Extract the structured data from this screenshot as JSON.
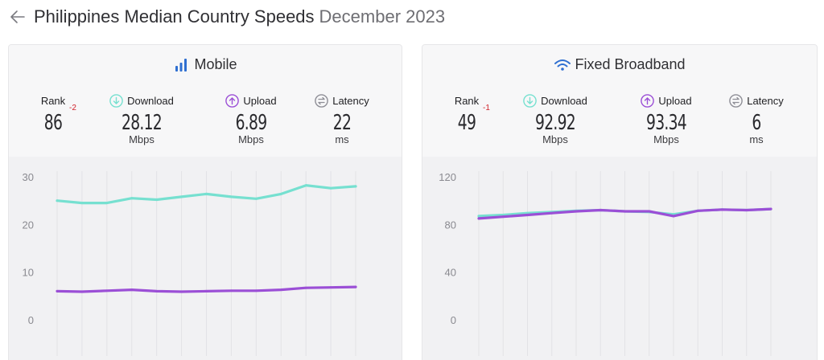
{
  "header": {
    "title": "Philippines Median Country Speeds",
    "period": "December 2023"
  },
  "colors": {
    "download": "#76e0d0",
    "upload": "#9b4fd6",
    "latency": "#8e8e96",
    "rank_change": "#d0202a",
    "icon_blue": "#2f6fd1"
  },
  "mobile": {
    "title": "Mobile",
    "icon": "signal-bars-icon",
    "rank_label": "Rank",
    "rank": "86",
    "rank_change": "-2",
    "download_label": "Download",
    "download": "28.12",
    "download_unit": "Mbps",
    "upload_label": "Upload",
    "upload": "6.89",
    "upload_unit": "Mbps",
    "latency_label": "Latency",
    "latency": "22",
    "latency_unit": "ms"
  },
  "fixed": {
    "title": "Fixed Broadband",
    "icon": "wifi-icon",
    "rank_label": "Rank",
    "rank": "49",
    "rank_change": "-1",
    "download_label": "Download",
    "download": "92.92",
    "download_unit": "Mbps",
    "upload_label": "Upload",
    "upload": "93.34",
    "upload_unit": "Mbps",
    "latency_label": "Latency",
    "latency": "6",
    "latency_unit": "ms"
  },
  "chart_data": [
    {
      "type": "line",
      "title": "Mobile",
      "ylim": [
        0,
        30
      ],
      "yticks": [
        "0",
        "10",
        "20",
        "30"
      ],
      "ytick_values": [
        0,
        10,
        20,
        30
      ],
      "x": [
        1,
        2,
        3,
        4,
        5,
        6,
        7,
        8,
        9,
        10,
        11,
        12,
        13
      ],
      "series": [
        {
          "name": "Download",
          "values": [
            25.0,
            24.5,
            24.5,
            25.5,
            25.2,
            25.8,
            26.4,
            25.8,
            25.4,
            26.4,
            28.2,
            27.6,
            28.0
          ]
        },
        {
          "name": "Upload",
          "values": [
            6.0,
            5.9,
            6.1,
            6.3,
            6.0,
            5.9,
            6.0,
            6.1,
            6.1,
            6.3,
            6.7,
            6.8,
            6.9
          ]
        }
      ]
    },
    {
      "type": "line",
      "title": "Fixed Broadband",
      "ylim": [
        0,
        120
      ],
      "yticks": [
        "0",
        "40",
        "80",
        "120"
      ],
      "ytick_values": [
        0,
        40,
        80,
        120
      ],
      "x": [
        1,
        2,
        3,
        4,
        5,
        6,
        7,
        8,
        9,
        10,
        11,
        12,
        13
      ],
      "series": [
        {
          "name": "Download",
          "values": [
            87.0,
            88.0,
            89.5,
            90.5,
            91.5,
            92.0,
            91.0,
            90.5,
            88.5,
            91.5,
            92.5,
            92.0,
            93.0
          ]
        },
        {
          "name": "Upload",
          "values": [
            85.0,
            86.5,
            88.0,
            89.5,
            91.0,
            92.0,
            91.0,
            91.0,
            87.0,
            91.5,
            92.5,
            92.0,
            93.0
          ]
        }
      ]
    }
  ]
}
